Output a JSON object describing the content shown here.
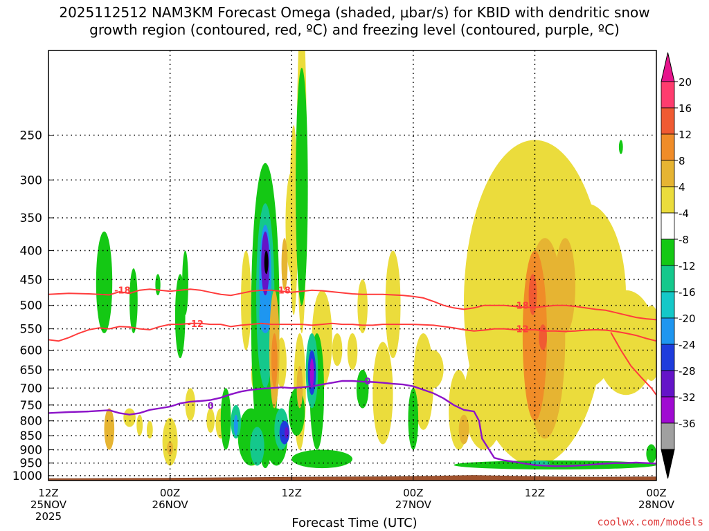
{
  "title": {
    "line1": "2025112512 NAM3KM Forecast Omega (shaded, μbar/s) for KBID with dendritic snow",
    "line2": "growth region (contoured, red, ºC) and freezing level (contoured, purple, ºC)"
  },
  "credit": "coolwx.com/models",
  "chart_data": {
    "type": "heatmap",
    "title": "2025112512 NAM3KM Forecast Omega (shaded, μbar/s) for KBID with dendritic snow growth region (contoured, red, ºC) and freezing level (contoured, purple, ºC)",
    "xlabel": "Forecast Time (UTC)",
    "ylabel": "",
    "x_ticks": [
      {
        "hour": 0,
        "lines": [
          "12Z",
          "25NOV",
          "2025"
        ]
      },
      {
        "hour": 12,
        "lines": [
          "00Z",
          "26NOV"
        ]
      },
      {
        "hour": 24,
        "lines": [
          "12Z"
        ]
      },
      {
        "hour": 36,
        "lines": [
          "00Z",
          "27NOV"
        ]
      },
      {
        "hour": 48,
        "lines": [
          "12Z"
        ]
      },
      {
        "hour": 60,
        "lines": [
          "00Z",
          "28NOV"
        ]
      }
    ],
    "xlim": [
      0,
      60
    ],
    "y_ticks": [
      250,
      300,
      350,
      400,
      450,
      500,
      550,
      600,
      650,
      700,
      750,
      800,
      850,
      900,
      950,
      1000
    ],
    "ylim": [
      1020,
      190
    ],
    "y_scale": "log",
    "grid": true,
    "colorbar": {
      "labels": [
        20,
        16,
        12,
        8,
        4,
        -4,
        -8,
        -12,
        -16,
        -20,
        -24,
        -28,
        -32,
        -36
      ],
      "colors": [
        "#ff3c6e",
        "#f05a32",
        "#f08c28",
        "#e6b432",
        "#ebdc3c",
        "#ffffff",
        "#14c814",
        "#14c88c",
        "#14c8c8",
        "#1e96f0",
        "#1e3cdc",
        "#6414c8",
        "#a00ad2",
        "#a0a0a0",
        "#000000"
      ],
      "top_color": "#e6148c",
      "bottom_color": "#000000"
    },
    "contours": {
      "dendritic_red": [
        {
          "label": "-18",
          "color": "#ff3c3c",
          "points": [
            [
              0,
              478
            ],
            [
              2,
              476
            ],
            [
              4,
              477
            ],
            [
              6,
              479
            ],
            [
              7,
              473
            ],
            [
              8,
              476
            ],
            [
              9,
              470
            ],
            [
              10,
              468
            ],
            [
              11,
              470
            ],
            [
              12,
              472
            ],
            [
              13,
              470
            ],
            [
              14,
              468
            ],
            [
              15,
              470
            ],
            [
              16,
              474
            ],
            [
              17,
              478
            ],
            [
              18,
              480
            ],
            [
              19,
              476
            ],
            [
              20,
              472
            ],
            [
              21,
              470
            ],
            [
              22,
              470
            ],
            [
              23,
              472
            ],
            [
              24,
              474
            ],
            [
              25,
              472
            ],
            [
              26,
              470
            ],
            [
              27,
              471
            ],
            [
              28,
              473
            ],
            [
              29,
              475
            ],
            [
              30,
              477
            ],
            [
              31,
              478
            ],
            [
              32,
              478
            ],
            [
              33,
              478
            ],
            [
              34,
              479
            ],
            [
              35,
              480
            ],
            [
              36,
              482
            ],
            [
              37,
              485
            ],
            [
              38,
              492
            ],
            [
              39,
              500
            ],
            [
              40,
              505
            ],
            [
              41,
              508
            ],
            [
              42,
              505
            ],
            [
              43,
              500
            ],
            [
              44,
              500
            ],
            [
              45,
              500
            ],
            [
              46,
              502
            ],
            [
              47,
              504
            ],
            [
              48,
              504
            ],
            [
              49,
              502
            ],
            [
              50,
              500
            ],
            [
              51,
              500
            ],
            [
              52,
              502
            ],
            [
              53,
              505
            ],
            [
              54,
              508
            ],
            [
              55,
              510
            ],
            [
              56,
              515
            ],
            [
              57,
              520
            ],
            [
              58,
              525
            ],
            [
              59,
              528
            ],
            [
              60,
              530
            ]
          ]
        },
        {
          "label": "-12",
          "color": "#ff3c3c",
          "points": [
            [
              0,
              575
            ],
            [
              1,
              578
            ],
            [
              2,
              570
            ],
            [
              3,
              560
            ],
            [
              4,
              552
            ],
            [
              5,
              548
            ],
            [
              6,
              550
            ],
            [
              7,
              545
            ],
            [
              8,
              546
            ],
            [
              9,
              550
            ],
            [
              10,
              552
            ],
            [
              11,
              545
            ],
            [
              12,
              540
            ],
            [
              13,
              540
            ],
            [
              14,
              538
            ],
            [
              15,
              538
            ],
            [
              16,
              540
            ],
            [
              17,
              540
            ],
            [
              18,
              545
            ],
            [
              19,
              542
            ],
            [
              20,
              540
            ],
            [
              21,
              538
            ],
            [
              22,
              540
            ],
            [
              23,
              540
            ],
            [
              24,
              540
            ],
            [
              25,
              540
            ],
            [
              26,
              542
            ],
            [
              27,
              540
            ],
            [
              28,
              538
            ],
            [
              29,
              540
            ],
            [
              30,
              540
            ],
            [
              31,
              542
            ],
            [
              32,
              542
            ],
            [
              33,
              540
            ],
            [
              34,
              540
            ],
            [
              35,
              540
            ],
            [
              36,
              540
            ],
            [
              37,
              541
            ],
            [
              38,
              542
            ],
            [
              39,
              545
            ],
            [
              40,
              548
            ],
            [
              41,
              552
            ],
            [
              42,
              555
            ],
            [
              43,
              553
            ],
            [
              44,
              550
            ],
            [
              45,
              550
            ],
            [
              46,
              552
            ],
            [
              47,
              552
            ],
            [
              48,
              552
            ],
            [
              49,
              555
            ],
            [
              50,
              555
            ],
            [
              51,
              556
            ],
            [
              52,
              555
            ],
            [
              53,
              553
            ],
            [
              54,
              552
            ],
            [
              55,
              553
            ],
            [
              56,
              556
            ],
            [
              57,
              560
            ],
            [
              58,
              565
            ],
            [
              59,
              572
            ],
            [
              60,
              578
            ]
          ]
        },
        {
          "label": "",
          "color": "#ff3c3c",
          "points": [
            [
              55.5,
              558
            ],
            [
              56.5,
              600
            ],
            [
              57.5,
              640
            ],
            [
              58.5,
              670
            ],
            [
              59.5,
              700
            ],
            [
              60,
              720
            ]
          ]
        }
      ],
      "freezing_purple": [
        {
          "label": "0",
          "color": "#8c14c8",
          "points": [
            [
              0,
              775
            ],
            [
              2,
              772
            ],
            [
              4,
              770
            ],
            [
              5,
              768
            ],
            [
              6,
              766
            ],
            [
              7,
              775
            ],
            [
              8,
              780
            ],
            [
              9,
              775
            ],
            [
              10,
              765
            ],
            [
              11,
              760
            ],
            [
              12,
              755
            ],
            [
              13,
              745
            ],
            [
              14,
              740
            ],
            [
              15,
              738
            ],
            [
              16,
              735
            ],
            [
              17,
              728
            ],
            [
              18,
              718
            ],
            [
              19,
              710
            ],
            [
              20,
              705
            ],
            [
              21,
              702
            ],
            [
              22,
              700
            ],
            [
              23,
              698
            ],
            [
              24,
              700
            ],
            [
              25,
              698
            ],
            [
              26,
              695
            ],
            [
              27,
              690
            ],
            [
              28,
              685
            ],
            [
              29,
              680
            ],
            [
              30,
              680
            ],
            [
              31,
              682
            ],
            [
              32,
              683
            ],
            [
              33,
              685
            ],
            [
              34,
              688
            ],
            [
              35,
              690
            ],
            [
              36,
              695
            ],
            [
              37,
              705
            ],
            [
              38,
              715
            ],
            [
              39,
              730
            ],
            [
              40,
              750
            ],
            [
              41,
              765
            ],
            [
              42,
              770
            ],
            [
              42.5,
              800
            ],
            [
              42.8,
              860
            ],
            [
              43.5,
              900
            ],
            [
              44,
              930
            ],
            [
              45,
              940
            ],
            [
              46,
              945
            ],
            [
              47,
              952
            ],
            [
              48,
              958
            ],
            [
              49,
              960
            ],
            [
              50,
              962
            ],
            [
              51,
              962
            ],
            [
              52,
              960
            ],
            [
              53,
              958
            ],
            [
              54,
              955
            ],
            [
              55,
              952
            ],
            [
              56,
              950
            ],
            [
              57,
              950
            ],
            [
              58,
              948
            ],
            [
              59,
              950
            ],
            [
              60,
              952
            ]
          ]
        }
      ]
    },
    "terrain": {
      "color": "#a0522d",
      "label": "surface"
    }
  }
}
